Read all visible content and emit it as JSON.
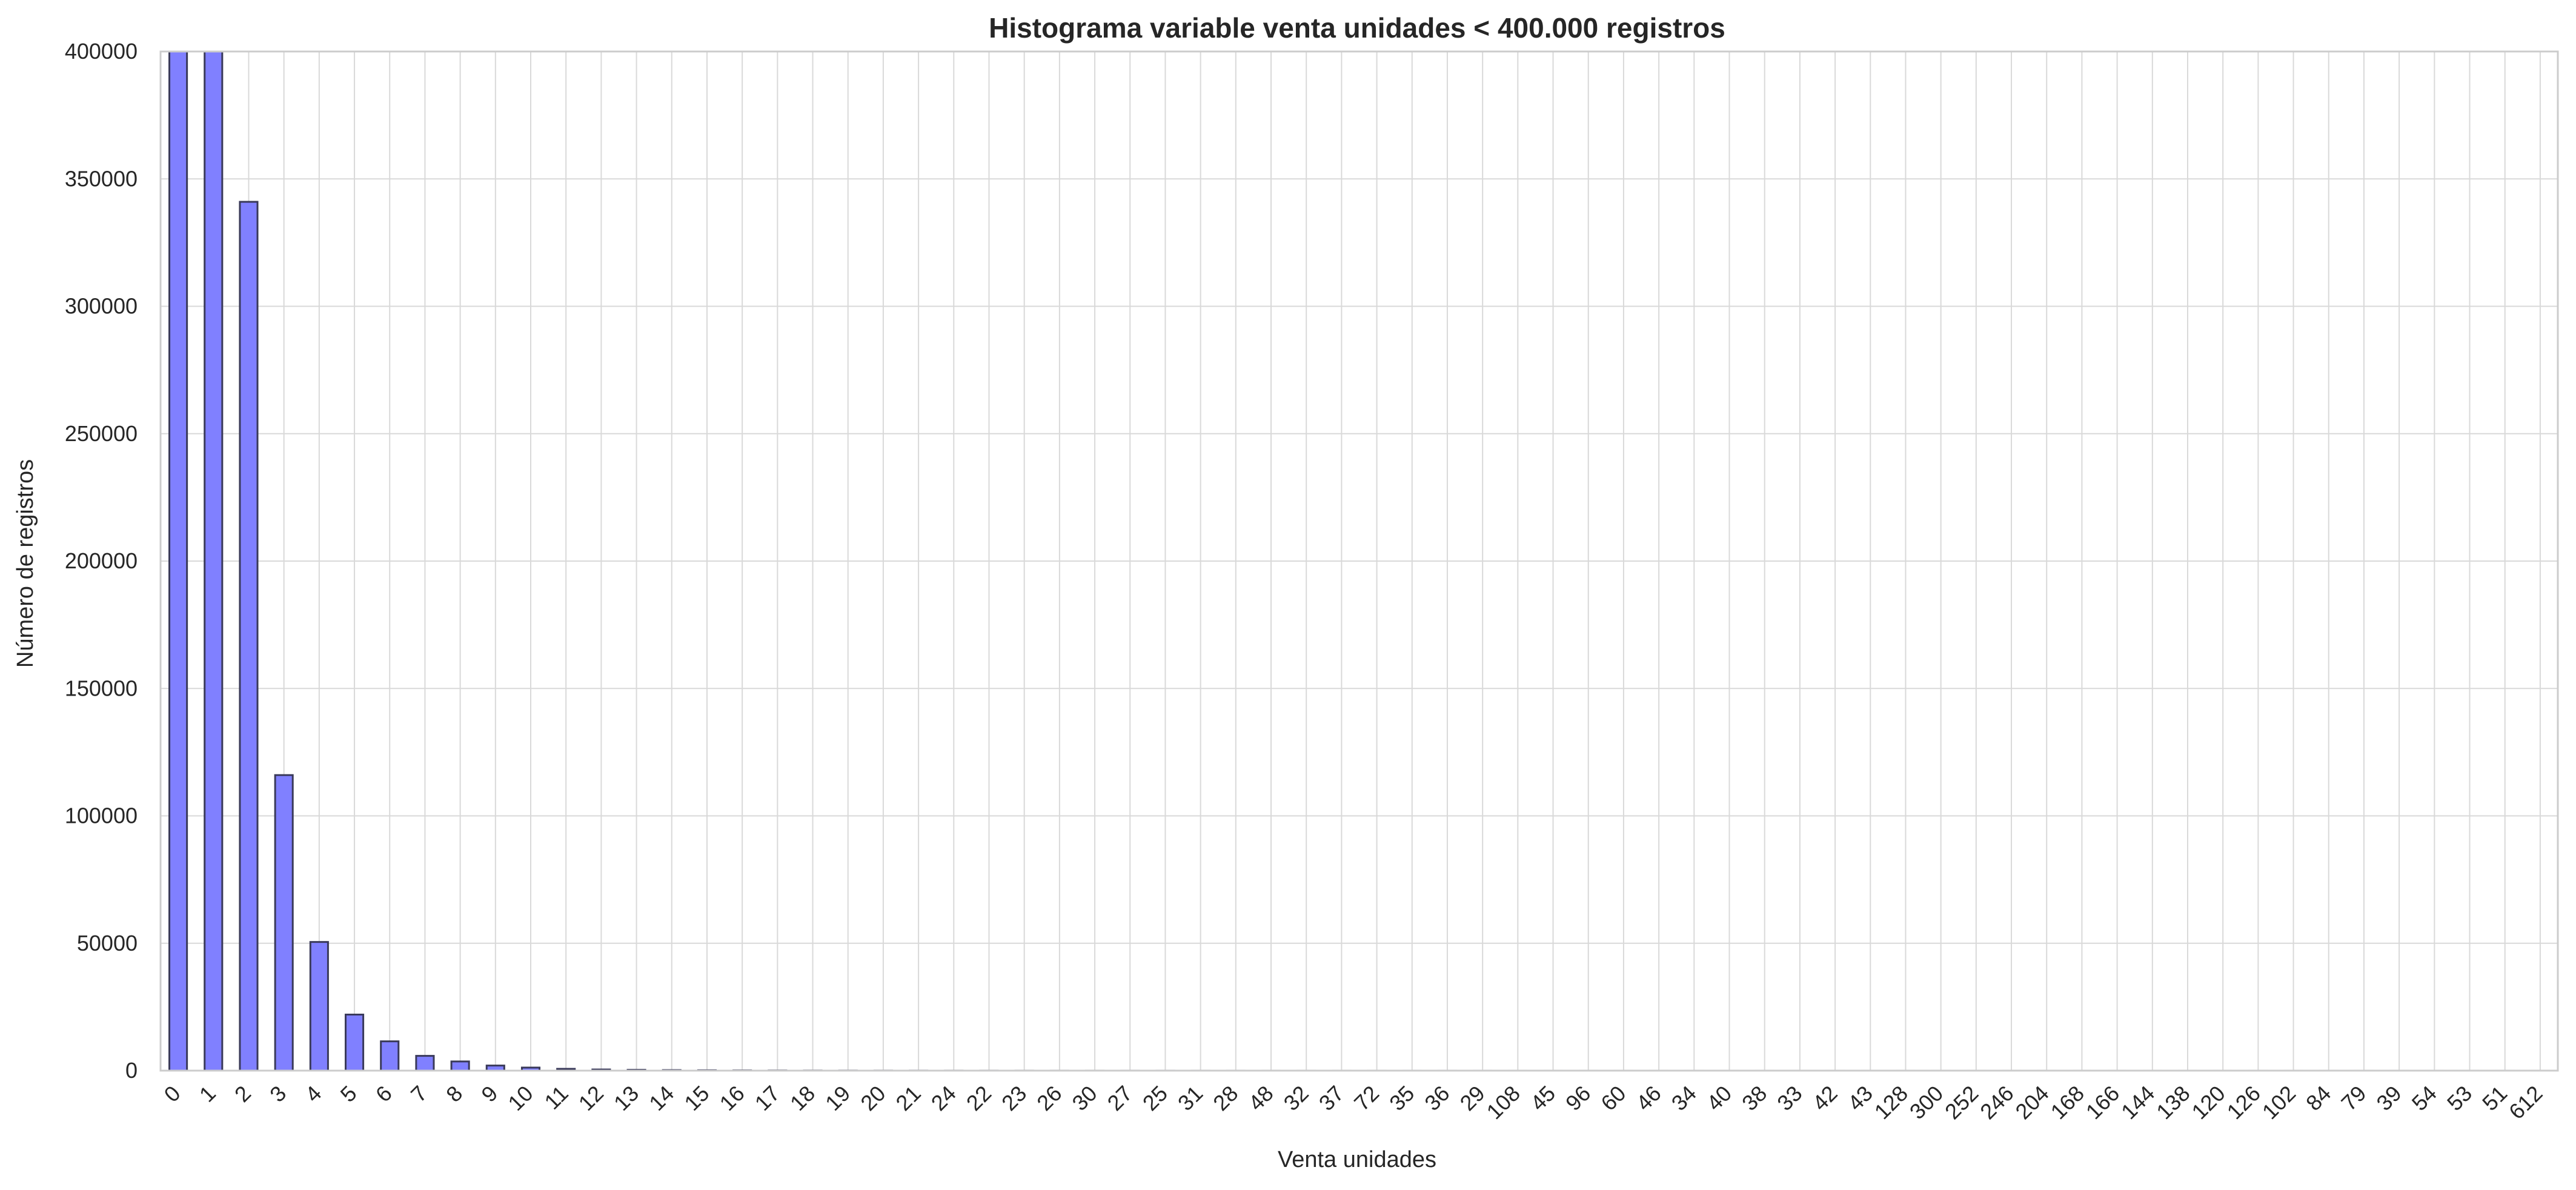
{
  "chart_data": {
    "type": "bar",
    "title": "Histograma variable venta unidades < 400.000 registros",
    "xlabel": "Venta unidades",
    "ylabel": "Número de registros",
    "ylim": [
      0,
      400000
    ],
    "yticks": [
      0,
      50000,
      100000,
      150000,
      200000,
      250000,
      300000,
      350000,
      400000
    ],
    "grid": true,
    "legend": "none",
    "categories": [
      "0",
      "1",
      "2",
      "3",
      "4",
      "5",
      "6",
      "7",
      "8",
      "9",
      "10",
      "11",
      "12",
      "13",
      "14",
      "15",
      "16",
      "17",
      "18",
      "19",
      "20",
      "21",
      "24",
      "22",
      "23",
      "26",
      "30",
      "27",
      "25",
      "31",
      "28",
      "48",
      "32",
      "37",
      "72",
      "35",
      "36",
      "29",
      "108",
      "45",
      "96",
      "60",
      "46",
      "34",
      "40",
      "38",
      "33",
      "42",
      "43",
      "128",
      "300",
      "252",
      "246",
      "204",
      "168",
      "166",
      "144",
      "138",
      "120",
      "126",
      "102",
      "84",
      "79",
      "39",
      "54",
      "53",
      "51",
      "612"
    ],
    "values": [
      400000,
      400000,
      341000,
      116000,
      50500,
      22000,
      11500,
      5800,
      3600,
      2000,
      1200,
      700,
      450,
      300,
      200,
      150,
      100,
      70,
      50,
      40,
      30,
      25,
      20,
      18,
      15,
      12,
      10,
      9,
      8,
      7,
      6,
      5,
      5,
      4,
      4,
      3,
      3,
      3,
      2,
      2,
      2,
      2,
      2,
      1,
      1,
      1,
      1,
      1,
      1,
      1,
      1,
      1,
      1,
      1,
      1,
      1,
      1,
      1,
      1,
      1,
      1,
      1,
      1,
      1,
      1,
      1,
      1,
      1
    ],
    "colors": {
      "bar_fill": "#8080ff",
      "bar_edge": "#3a3a5a",
      "grid": "#d9d9d9",
      "frame": "#cccccc"
    }
  }
}
